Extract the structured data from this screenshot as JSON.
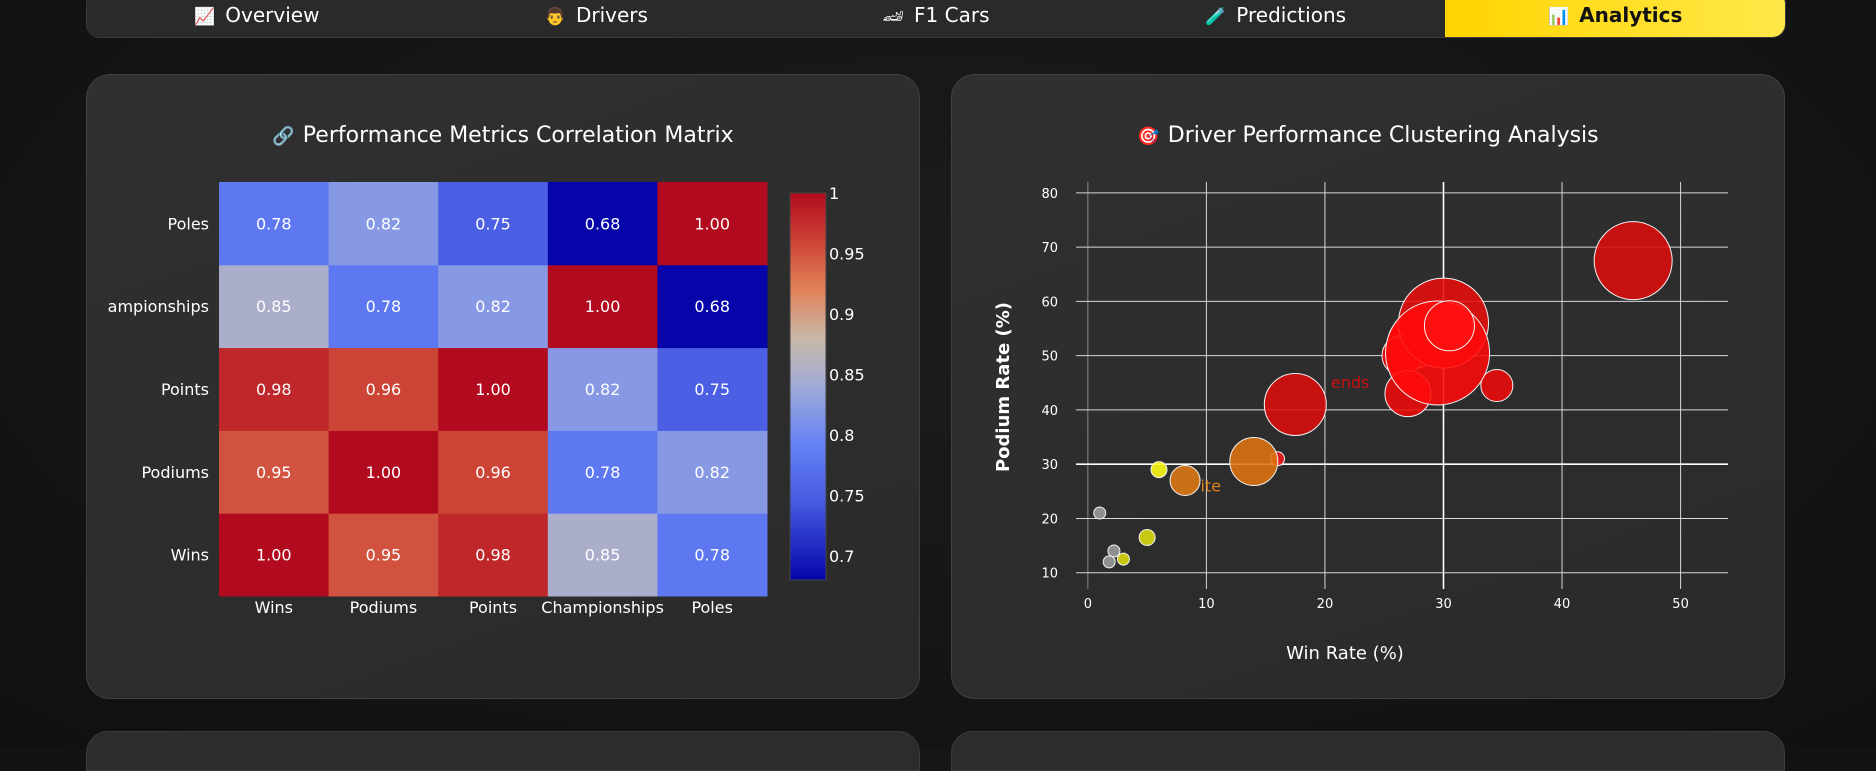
{
  "nav": {
    "tabs": [
      {
        "label": "Overview",
        "icon": "📈",
        "active": false
      },
      {
        "label": "Drivers",
        "icon": "👨",
        "active": false
      },
      {
        "label": "F1 Cars",
        "icon": "🏎",
        "active": false
      },
      {
        "label": "Predictions",
        "icon": "🧪",
        "active": false
      },
      {
        "label": "Analytics",
        "icon": "📊",
        "active": true
      }
    ]
  },
  "heatmap_card": {
    "title": "Performance Metrics Correlation Matrix",
    "icon": "🔗"
  },
  "scatter_card": {
    "title": "Driver Performance Clustering Analysis",
    "icon": "🎯"
  },
  "chart_data": [
    {
      "type": "heatmap",
      "title": "Performance Metrics Correlation Matrix",
      "x_categories": [
        "Wins",
        "Podiums",
        "Points",
        "Championships",
        "Poles"
      ],
      "y_categories": [
        "Wins",
        "Podiums",
        "Points",
        "Championships",
        "Poles"
      ],
      "y_tick_labels": [
        "Wins",
        "Podiums",
        "Points",
        "ampionships",
        "Poles"
      ],
      "values": [
        [
          1.0,
          0.95,
          0.98,
          0.85,
          0.78
        ],
        [
          0.95,
          1.0,
          0.96,
          0.78,
          0.82
        ],
        [
          0.98,
          0.96,
          1.0,
          0.82,
          0.75
        ],
        [
          0.85,
          0.78,
          0.82,
          1.0,
          0.68
        ],
        [
          0.78,
          0.82,
          0.75,
          0.68,
          1.0
        ]
      ],
      "colorscale": "coolwarm",
      "colorbar": {
        "min": 0.68,
        "max": 1.0,
        "ticks": [
          0.7,
          0.75,
          0.8,
          0.85,
          0.9,
          0.95,
          1
        ],
        "tick_labels": [
          "0.7",
          "0.75",
          "0.8",
          "0.85",
          "0.9",
          "0.95",
          "1"
        ]
      }
    },
    {
      "type": "scatter",
      "title": "Driver Performance Clustering Analysis",
      "xlabel": "Win Rate (%)",
      "ylabel": "Podium Rate (%)",
      "xlim": [
        -1,
        54
      ],
      "ylim": [
        7,
        82
      ],
      "x_ticks": [
        0,
        10,
        20,
        30,
        40,
        50
      ],
      "y_ticks": [
        10,
        20,
        30,
        40,
        50,
        60,
        70,
        80
      ],
      "grid": true,
      "annotations": [
        {
          "text": "ends",
          "x": 20.5,
          "y": 44,
          "color": "#cc1010"
        },
        {
          "text": "ite",
          "x": 9.5,
          "y": 25,
          "color": "#e0801a"
        }
      ],
      "points": [
        {
          "x": 46,
          "y": 67.5,
          "size": 39,
          "color": "#dd0c0c"
        },
        {
          "x": 27.5,
          "y": 52.5,
          "size": 26,
          "color": "#ee0a0a"
        },
        {
          "x": 26.5,
          "y": 50,
          "size": 20,
          "color": "#ee0a0a"
        },
        {
          "x": 27,
          "y": 43,
          "size": 23,
          "color": "#ee0a0a"
        },
        {
          "x": 34.5,
          "y": 44.5,
          "size": 16,
          "color": "#ee0a0a"
        },
        {
          "x": 30,
          "y": 56,
          "size": 45,
          "color": "#e80d0d"
        },
        {
          "x": 29.5,
          "y": 50.5,
          "size": 52,
          "color": "#ff0a0a"
        },
        {
          "x": 30.5,
          "y": 55.5,
          "size": 25,
          "color": "#ff1010"
        },
        {
          "x": 17.5,
          "y": 41,
          "size": 31,
          "color": "#dd0c0c"
        },
        {
          "x": 16,
          "y": 31,
          "size": 7,
          "color": "#ee1a1a"
        },
        {
          "x": 14,
          "y": 30.5,
          "size": 24,
          "color": "#de7410"
        },
        {
          "x": 8.2,
          "y": 27,
          "size": 15,
          "color": "#e07a14"
        },
        {
          "x": 6,
          "y": 29,
          "size": 8,
          "color": "#ffff14"
        },
        {
          "x": 5,
          "y": 16.5,
          "size": 8,
          "color": "#dede10"
        },
        {
          "x": 3,
          "y": 12.5,
          "size": 6,
          "color": "#dede10"
        },
        {
          "x": 1,
          "y": 21,
          "size": 6,
          "color": "#9e9e9e"
        },
        {
          "x": 2.2,
          "y": 14,
          "size": 6,
          "color": "#9e9e9e"
        },
        {
          "x": 1.8,
          "y": 12,
          "size": 6,
          "color": "#9e9e9e"
        }
      ]
    }
  ]
}
